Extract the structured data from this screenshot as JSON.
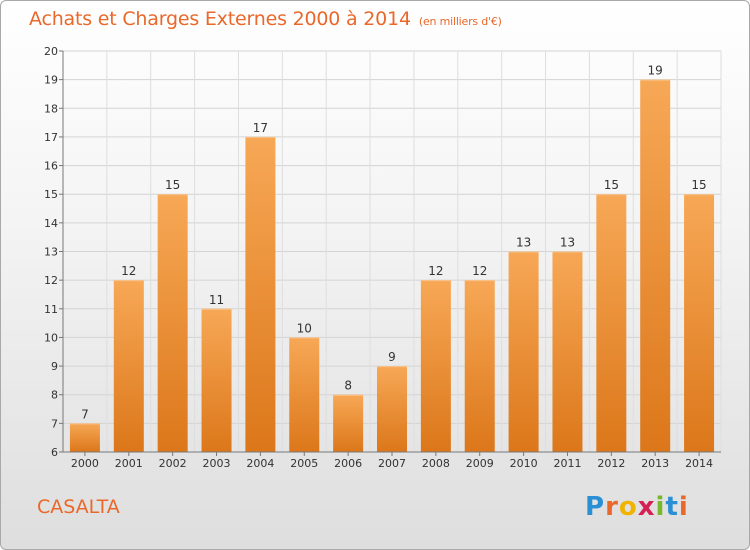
{
  "title": "Achats et Charges Externes 2000 à 2014",
  "subtitle": "(en milliers d'€)",
  "commune": "CASALTA",
  "logo": {
    "letters": [
      "P",
      "r",
      "o",
      "x",
      "i",
      "t",
      "i"
    ],
    "colors": [
      "#2a8fd4",
      "#e9682a",
      "#f0b400",
      "#d61f52",
      "#79b828",
      "#2a8fd4",
      "#e9682a"
    ]
  },
  "colors": {
    "accent": "#e9682a",
    "bar_light": "#f6a452",
    "bar_dark": "#dd7a1e"
  },
  "chart_data": {
    "type": "bar",
    "title": "Achats et Charges Externes 2000 à 2014",
    "subtitle": "(en milliers d'€)",
    "categories": [
      "2000",
      "2001",
      "2002",
      "2003",
      "2004",
      "2005",
      "2006",
      "2007",
      "2008",
      "2009",
      "2010",
      "2011",
      "2012",
      "2013",
      "2014"
    ],
    "values": [
      7,
      12,
      15,
      11,
      17,
      10,
      8,
      9,
      12,
      12,
      13,
      13,
      15,
      19,
      15
    ],
    "ylim": [
      6,
      20
    ],
    "yticks": [
      6,
      7,
      8,
      9,
      10,
      11,
      12,
      13,
      14,
      15,
      16,
      17,
      18,
      19,
      20
    ],
    "grid": true
  }
}
